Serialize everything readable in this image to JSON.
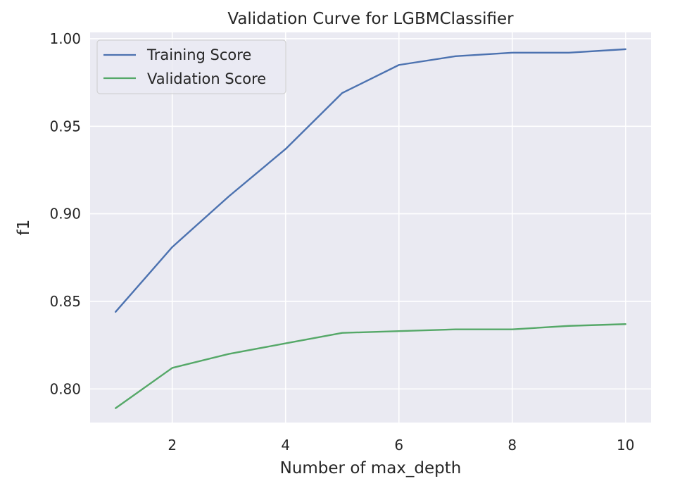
{
  "chart_data": {
    "type": "line",
    "title": "Validation Curve for LGBMClassifier",
    "xlabel": "Number of max_depth",
    "ylabel": "f1",
    "x": [
      1,
      2,
      3,
      4,
      5,
      6,
      7,
      8,
      9,
      10
    ],
    "series": [
      {
        "name": "Training Score",
        "color": "#4c72b0",
        "values": [
          0.844,
          0.881,
          0.91,
          0.937,
          0.969,
          0.985,
          0.99,
          0.992,
          0.992,
          0.994
        ]
      },
      {
        "name": "Validation Score",
        "color": "#55a868",
        "values": [
          0.789,
          0.812,
          0.82,
          0.826,
          0.832,
          0.833,
          0.834,
          0.834,
          0.836,
          0.837
        ]
      }
    ],
    "xlim": [
      0.55,
      10.45
    ],
    "ylim": [
      0.7808,
      1.0036
    ],
    "xticks": [
      2,
      4,
      6,
      8,
      10
    ],
    "xtick_labels": [
      "2",
      "4",
      "6",
      "8",
      "10"
    ],
    "yticks": [
      0.8,
      0.85,
      0.9,
      0.95,
      1.0
    ],
    "ytick_labels": [
      "0.80",
      "0.85",
      "0.90",
      "0.95",
      "1.00"
    ],
    "grid": true,
    "legend_position": "top-left",
    "background_color": "#eaeaf2",
    "grid_color": "#ffffff"
  }
}
